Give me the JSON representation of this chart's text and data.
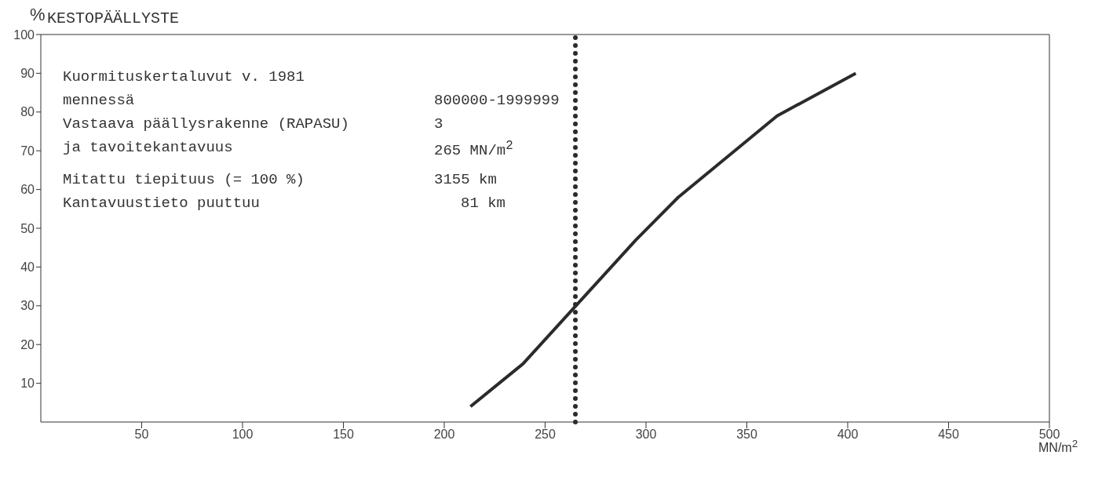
{
  "chart_data": {
    "type": "line",
    "title": "KESTOPÄÄLLYSTE",
    "ylabel": "%",
    "xlabel": "MN/m$^{2}$",
    "x": [
      213,
      239,
      295,
      316,
      365,
      404
    ],
    "series": [
      {
        "color": "#2b2b2b",
        "values": [
          4,
          15,
          47,
          58,
          79,
          90
        ]
      }
    ],
    "xlim": [
      0,
      500
    ],
    "xticks": [
      50,
      100,
      150,
      200,
      250,
      300,
      350,
      400,
      450,
      500
    ],
    "ylim": [
      0,
      100
    ],
    "yticks": [
      10,
      20,
      30,
      40,
      50,
      60,
      70,
      80,
      90,
      100
    ],
    "ref_lines": [
      {
        "axis": "x",
        "value": 265,
        "color": "#2b2b2b",
        "line_style": "dotted"
      }
    ],
    "annotations": [
      "Kuormituskertaluvut v. 1981",
      "mennessä",
      "800000-1999999",
      "Vastaava päällysrakenne (RAPASU)",
      "3",
      "ja tavoitekantavuus",
      "265 MN/m$^{2}$",
      "Mitattu tiepituus (= 100 %)",
      "3155 km",
      "Kantavuustieto puuttuu",
      "81 km"
    ],
    "grid": false,
    "legend": false,
    "marker": "none",
    "line_style": "solid"
  }
}
